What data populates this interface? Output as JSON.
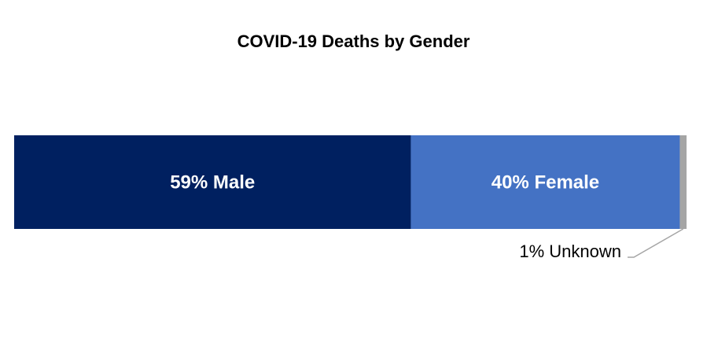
{
  "chart_data": {
    "type": "bar",
    "orientation": "horizontal-stacked-100",
    "title": "COVID-19 Deaths by Gender",
    "series": [
      {
        "name": "Male",
        "value": 59,
        "label": "59% Male",
        "color": "#002060"
      },
      {
        "name": "Female",
        "value": 40,
        "label": "40% Female",
        "color": "#4472C4"
      },
      {
        "name": "Unknown",
        "value": 1,
        "label": "1% Unknown",
        "color": "#A5A5A5"
      }
    ],
    "xlim": [
      0,
      100
    ],
    "grid": false,
    "legend": "none"
  }
}
